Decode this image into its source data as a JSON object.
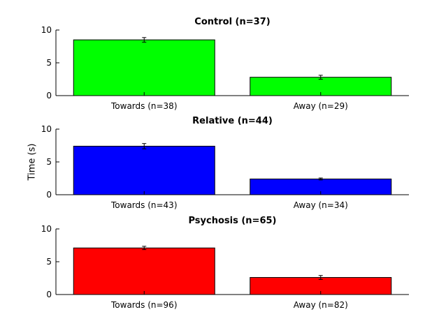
{
  "figure": {
    "ylabel": "Time (s)"
  },
  "chart_data": [
    {
      "type": "bar",
      "title": "Control (n=37)",
      "categories": [
        "Towards (n=38)",
        "Away (n=29)"
      ],
      "values": [
        8.5,
        2.8
      ],
      "errors": [
        0.35,
        0.3
      ],
      "color": "#00ff00",
      "ylim": [
        0,
        10
      ],
      "yticks": [
        0,
        5,
        10
      ],
      "grid": false
    },
    {
      "type": "bar",
      "title": "Relative (n=44)",
      "categories": [
        "Towards (n=43)",
        "Away (n=34)"
      ],
      "values": [
        7.4,
        2.4
      ],
      "errors": [
        0.4,
        0.15
      ],
      "color": "#0000ff",
      "ylim": [
        0,
        10
      ],
      "yticks": [
        0,
        5,
        10
      ],
      "grid": false
    },
    {
      "type": "bar",
      "title": "Psychosis (n=65)",
      "categories": [
        "Towards (n=96)",
        "Away (n=82)"
      ],
      "values": [
        7.1,
        2.6
      ],
      "errors": [
        0.25,
        0.3
      ],
      "color": "#ff0000",
      "ylim": [
        0,
        10
      ],
      "yticks": [
        0,
        5,
        10
      ],
      "grid": false
    }
  ]
}
